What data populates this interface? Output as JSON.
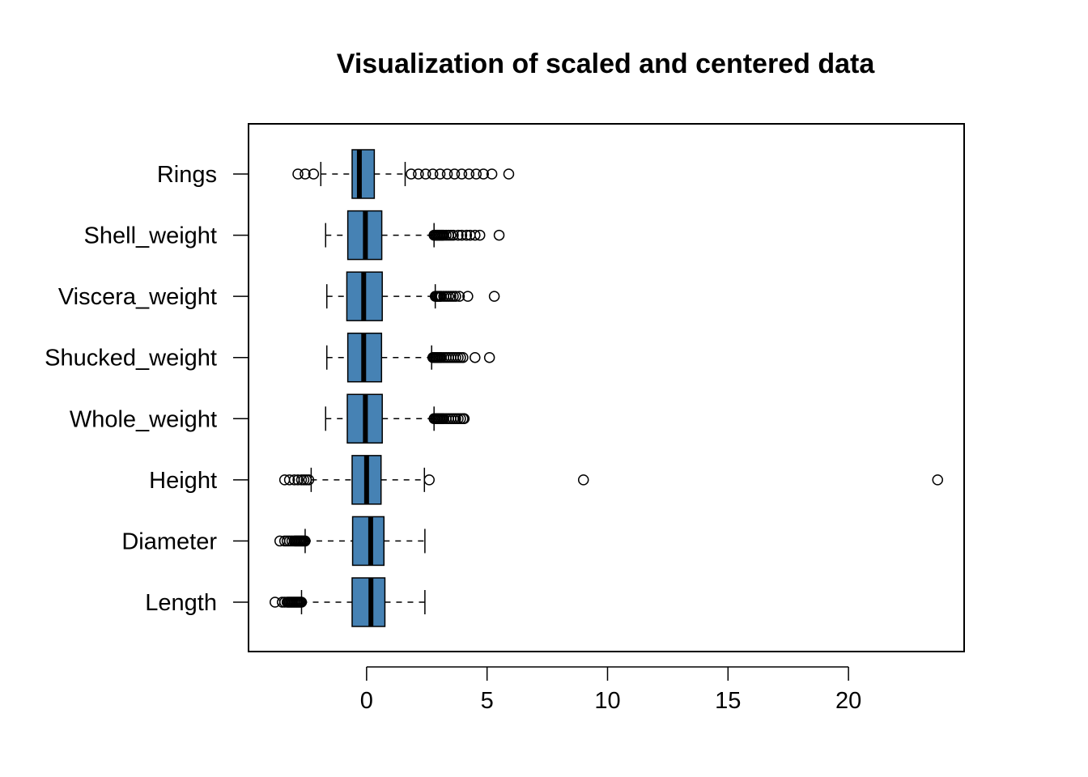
{
  "chart_data": {
    "type": "boxplot",
    "orientation": "horizontal",
    "title": "Visualization of scaled and centered data",
    "xlabel": "",
    "ylabel": "",
    "xlim": [
      -4.9,
      24.8
    ],
    "xticks": [
      0,
      5,
      10,
      15,
      20
    ],
    "xtick_labels": [
      "0",
      "5",
      "10",
      "15",
      "20"
    ],
    "grid": false,
    "box_color": "#4682B4",
    "categories": [
      "Length",
      "Diameter",
      "Height",
      "Whole_weight",
      "Shucked_weight",
      "Viscera_weight",
      "Shell_weight",
      "Rings"
    ],
    "boxes": [
      {
        "name": "Length",
        "whisker_low": -2.7,
        "q1": -0.6,
        "median": 0.18,
        "q3": 0.76,
        "whisker_high": 2.42,
        "outliers": [
          -3.8,
          -3.5,
          -3.4,
          -3.3,
          -3.25,
          -3.2,
          -3.15,
          -3.1,
          -3.05,
          -3.0,
          -2.95,
          -2.9,
          -2.85,
          -2.8,
          -2.75,
          -2.7
        ]
      },
      {
        "name": "Diameter",
        "whisker_low": -2.55,
        "q1": -0.58,
        "median": 0.17,
        "q3": 0.72,
        "whisker_high": 2.42,
        "outliers": [
          -3.6,
          -3.4,
          -3.3,
          -3.2,
          -3.1,
          -3.0,
          -2.95,
          -2.9,
          -2.85,
          -2.8,
          -2.75,
          -2.7,
          -2.65,
          -2.6,
          -2.55
        ]
      },
      {
        "name": "Height",
        "whisker_low": -2.3,
        "q1": -0.6,
        "median": 0.0,
        "q3": 0.6,
        "whisker_high": 2.4,
        "outliers": [
          -3.4,
          -3.2,
          -3.0,
          -2.85,
          -2.7,
          -2.6,
          -2.5,
          -2.4,
          2.6,
          9.0,
          23.7
        ]
      },
      {
        "name": "Whole_weight",
        "whisker_low": -1.7,
        "q1": -0.8,
        "median": -0.05,
        "q3": 0.65,
        "whisker_high": 2.8,
        "outliers": [
          2.8,
          2.85,
          2.9,
          2.95,
          3.0,
          3.05,
          3.1,
          3.15,
          3.2,
          3.3,
          3.4,
          3.5,
          3.6,
          3.7,
          3.8,
          3.9,
          4.0,
          4.05
        ]
      },
      {
        "name": "Shucked_weight",
        "whisker_low": -1.65,
        "q1": -0.78,
        "median": -0.12,
        "q3": 0.62,
        "whisker_high": 2.7,
        "outliers": [
          2.75,
          2.8,
          2.85,
          2.9,
          2.95,
          3.0,
          3.05,
          3.1,
          3.2,
          3.3,
          3.4,
          3.5,
          3.6,
          3.7,
          3.8,
          3.9,
          4.0,
          4.5,
          5.1
        ]
      },
      {
        "name": "Viscera_weight",
        "whisker_low": -1.65,
        "q1": -0.82,
        "median": -0.12,
        "q3": 0.65,
        "whisker_high": 2.85,
        "outliers": [
          2.85,
          2.9,
          2.95,
          3.0,
          3.05,
          3.1,
          3.2,
          3.3,
          3.4,
          3.5,
          3.6,
          3.7,
          3.85,
          4.2,
          5.3
        ]
      },
      {
        "name": "Shell_weight",
        "whisker_low": -1.7,
        "q1": -0.78,
        "median": -0.05,
        "q3": 0.63,
        "whisker_high": 2.8,
        "outliers": [
          2.8,
          2.85,
          2.9,
          2.95,
          3.0,
          3.05,
          3.1,
          3.15,
          3.2,
          3.3,
          3.4,
          3.5,
          3.6,
          3.8,
          3.95,
          4.15,
          4.3,
          4.5,
          4.7,
          5.5
        ]
      },
      {
        "name": "Rings",
        "whisker_low": -1.9,
        "q1": -0.6,
        "median": -0.3,
        "q3": 0.32,
        "whisker_high": 1.6,
        "outliers": [
          -2.85,
          -2.55,
          -2.2,
          1.85,
          2.15,
          2.45,
          2.75,
          3.05,
          3.35,
          3.65,
          3.95,
          4.25,
          4.55,
          4.85,
          5.2,
          5.9
        ]
      }
    ]
  }
}
